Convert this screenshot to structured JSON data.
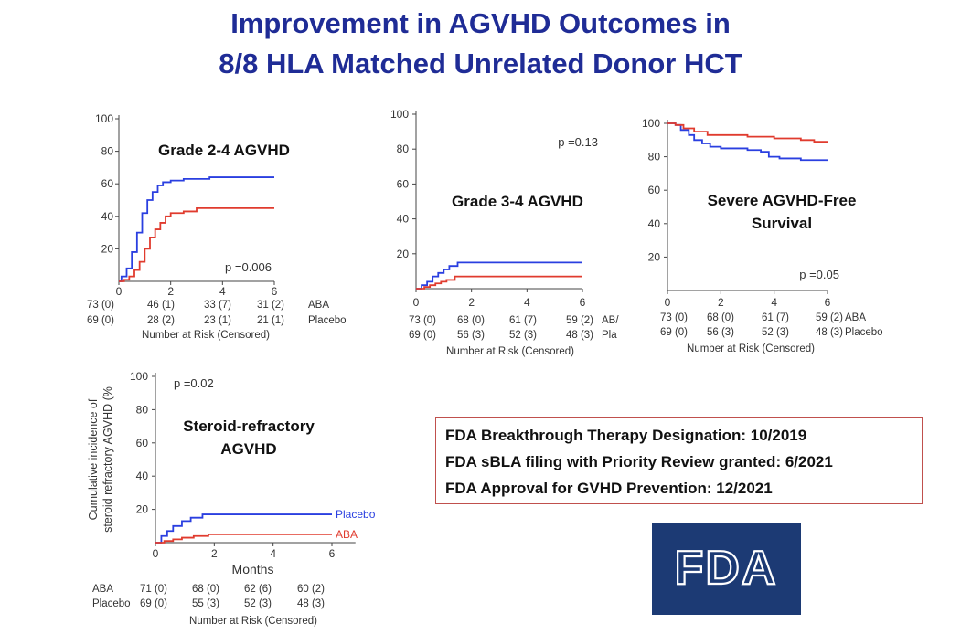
{
  "title": {
    "line1": "Improvement in AGVHD Outcomes in",
    "line2": "8/8 HLA Matched Unrelated Donor HCT"
  },
  "colors": {
    "title": "#1f2c96",
    "blue_series": "#2a3fe0",
    "red_series": "#e03b2e",
    "box_border": "#c0504d",
    "logo_bg": "#1c3a74"
  },
  "chart_data": [
    {
      "id": "p1",
      "type": "line",
      "title": "Grade 2-4 AGVHD",
      "xlabel": "",
      "ylabel": "",
      "x_ticks": [
        "0",
        "2",
        "4",
        "6"
      ],
      "y_ticks": [
        "20",
        "40",
        "60",
        "80",
        "100"
      ],
      "xlim": [
        0,
        6
      ],
      "ylim": [
        0,
        100
      ],
      "pvalue": "p =0.006",
      "series": [
        {
          "color": "#2a3fe0",
          "points": [
            [
              0,
              0
            ],
            [
              0.1,
              3
            ],
            [
              0.3,
              8
            ],
            [
              0.5,
              18
            ],
            [
              0.7,
              30
            ],
            [
              0.9,
              42
            ],
            [
              1.1,
              50
            ],
            [
              1.3,
              55
            ],
            [
              1.5,
              59
            ],
            [
              1.7,
              61
            ],
            [
              2.0,
              62
            ],
            [
              2.5,
              63
            ],
            [
              3.0,
              63
            ],
            [
              3.5,
              64
            ],
            [
              6.0,
              64
            ]
          ]
        },
        {
          "color": "#e03b2e",
          "points": [
            [
              0,
              0
            ],
            [
              0.2,
              1
            ],
            [
              0.4,
              3
            ],
            [
              0.6,
              7
            ],
            [
              0.8,
              12
            ],
            [
              1.0,
              20
            ],
            [
              1.2,
              27
            ],
            [
              1.4,
              32
            ],
            [
              1.6,
              36
            ],
            [
              1.8,
              40
            ],
            [
              2.0,
              42
            ],
            [
              2.5,
              43
            ],
            [
              3.0,
              45
            ],
            [
              6.0,
              45
            ]
          ]
        }
      ],
      "risk_title": "Number at Risk (Censored)",
      "risk_rows": [
        {
          "label": "ABA",
          "values": [
            "73 (0)",
            "46 (1)",
            "33 (7)",
            "31 (2)"
          ]
        },
        {
          "label": "Placebo",
          "values": [
            "69 (0)",
            "28 (2)",
            "23 (1)",
            "21 (1)"
          ]
        }
      ]
    },
    {
      "id": "p2",
      "type": "line",
      "title": "Grade 3-4 AGVHD",
      "xlabel": "",
      "ylabel": "",
      "x_ticks": [
        "0",
        "2",
        "4",
        "6"
      ],
      "y_ticks": [
        "20",
        "40",
        "60",
        "80",
        "100"
      ],
      "xlim": [
        0,
        6
      ],
      "ylim": [
        0,
        100
      ],
      "pvalue": "p =0.13",
      "series": [
        {
          "color": "#2a3fe0",
          "points": [
            [
              0,
              0
            ],
            [
              0.2,
              2
            ],
            [
              0.4,
              4
            ],
            [
              0.6,
              7
            ],
            [
              0.8,
              9
            ],
            [
              1.0,
              11
            ],
            [
              1.2,
              13
            ],
            [
              1.5,
              15
            ],
            [
              6.0,
              15
            ]
          ]
        },
        {
          "color": "#e03b2e",
          "points": [
            [
              0,
              0
            ],
            [
              0.3,
              1
            ],
            [
              0.5,
              2
            ],
            [
              0.7,
              3
            ],
            [
              0.9,
              4
            ],
            [
              1.1,
              5
            ],
            [
              1.4,
              7
            ],
            [
              6.0,
              7
            ]
          ]
        }
      ],
      "risk_title": "Number at Risk (Censored)",
      "risk_rows": [
        {
          "label": "AB/",
          "values": [
            "73 (0)",
            "68 (0)",
            "61 (7)",
            "59 (2)"
          ]
        },
        {
          "label": "Pla",
          "values": [
            "69 (0)",
            "56 (3)",
            "52 (3)",
            "48 (3)"
          ]
        }
      ]
    },
    {
      "id": "p3",
      "type": "line",
      "title": "Severe AGVHD-Free Survival",
      "title_lines": [
        "Severe AGVHD-Free",
        "Survival"
      ],
      "xlabel": "",
      "ylabel": "",
      "x_ticks": [
        "0",
        "2",
        "4",
        "6"
      ],
      "y_ticks": [
        "20",
        "40",
        "60",
        "80",
        "100"
      ],
      "xlim": [
        0,
        6
      ],
      "ylim": [
        0,
        100
      ],
      "pvalue": "p =0.05",
      "series": [
        {
          "color": "#2a3fe0",
          "points": [
            [
              0,
              100
            ],
            [
              0.3,
              99
            ],
            [
              0.5,
              96
            ],
            [
              0.8,
              93
            ],
            [
              1.0,
              90
            ],
            [
              1.3,
              88
            ],
            [
              1.6,
              86
            ],
            [
              2.0,
              85
            ],
            [
              3.0,
              84
            ],
            [
              3.5,
              83
            ],
            [
              3.8,
              80
            ],
            [
              4.2,
              79
            ],
            [
              5.0,
              78
            ],
            [
              6.0,
              78
            ]
          ]
        },
        {
          "color": "#e03b2e",
          "points": [
            [
              0,
              100
            ],
            [
              0.3,
              99
            ],
            [
              0.6,
              97
            ],
            [
              1.0,
              95
            ],
            [
              1.5,
              93
            ],
            [
              2.0,
              93
            ],
            [
              3.0,
              92
            ],
            [
              4.0,
              91
            ],
            [
              5.0,
              90
            ],
            [
              5.5,
              89
            ],
            [
              6.0,
              89
            ]
          ]
        }
      ],
      "risk_title": "Number at Risk (Censored)",
      "risk_rows": [
        {
          "label": "ABA",
          "values": [
            "73 (0)",
            "68 (0)",
            "61 (7)",
            "59 (2)"
          ]
        },
        {
          "label": "Placebo",
          "values": [
            "69 (0)",
            "56 (3)",
            "52 (3)",
            "48 (3)"
          ]
        }
      ]
    },
    {
      "id": "p4",
      "type": "line",
      "title": "Steroid-refractory AGVHD",
      "title_lines": [
        "Steroid-refractory",
        "AGVHD"
      ],
      "xlabel": "Months",
      "ylabel": "Cumulative incidence of steroid refractory AGVHD (%)",
      "ylabel_lines": [
        "Cumulative incidence of",
        "steroid refractory AGVHD (%"
      ],
      "x_ticks": [
        "0",
        "2",
        "4",
        "6"
      ],
      "y_ticks": [
        "20",
        "40",
        "60",
        "80",
        "100"
      ],
      "xlim": [
        0,
        6.8
      ],
      "ylim": [
        0,
        100
      ],
      "pvalue": "p =0.02",
      "series": [
        {
          "name": "Placebo",
          "color": "#2a3fe0",
          "points": [
            [
              0,
              0
            ],
            [
              0.2,
              4
            ],
            [
              0.4,
              7
            ],
            [
              0.6,
              10
            ],
            [
              0.9,
              13
            ],
            [
              1.2,
              15
            ],
            [
              1.6,
              17
            ],
            [
              6.0,
              17
            ]
          ]
        },
        {
          "name": "ABA",
          "color": "#e03b2e",
          "points": [
            [
              0,
              0
            ],
            [
              0.3,
              1
            ],
            [
              0.6,
              2
            ],
            [
              0.9,
              3
            ],
            [
              1.3,
              4
            ],
            [
              1.8,
              5
            ],
            [
              6.0,
              5
            ]
          ]
        }
      ],
      "risk_title": "Number at Risk (Censored)",
      "risk_rows": [
        {
          "label": "ABA",
          "values": [
            "71 (0)",
            "68 (0)",
            "62 (6)",
            "60 (2)"
          ]
        },
        {
          "label": "Placebo",
          "values": [
            "69 (0)",
            "55 (3)",
            "52 (3)",
            "48 (3)"
          ]
        }
      ]
    }
  ],
  "fda_box": {
    "lines": [
      "FDA Breakthrough Therapy Designation: 10/2019",
      "FDA sBLA filing with Priority Review granted: 6/2021",
      "FDA Approval for GVHD Prevention: 12/2021"
    ]
  },
  "logo": {
    "text": "FDA"
  }
}
